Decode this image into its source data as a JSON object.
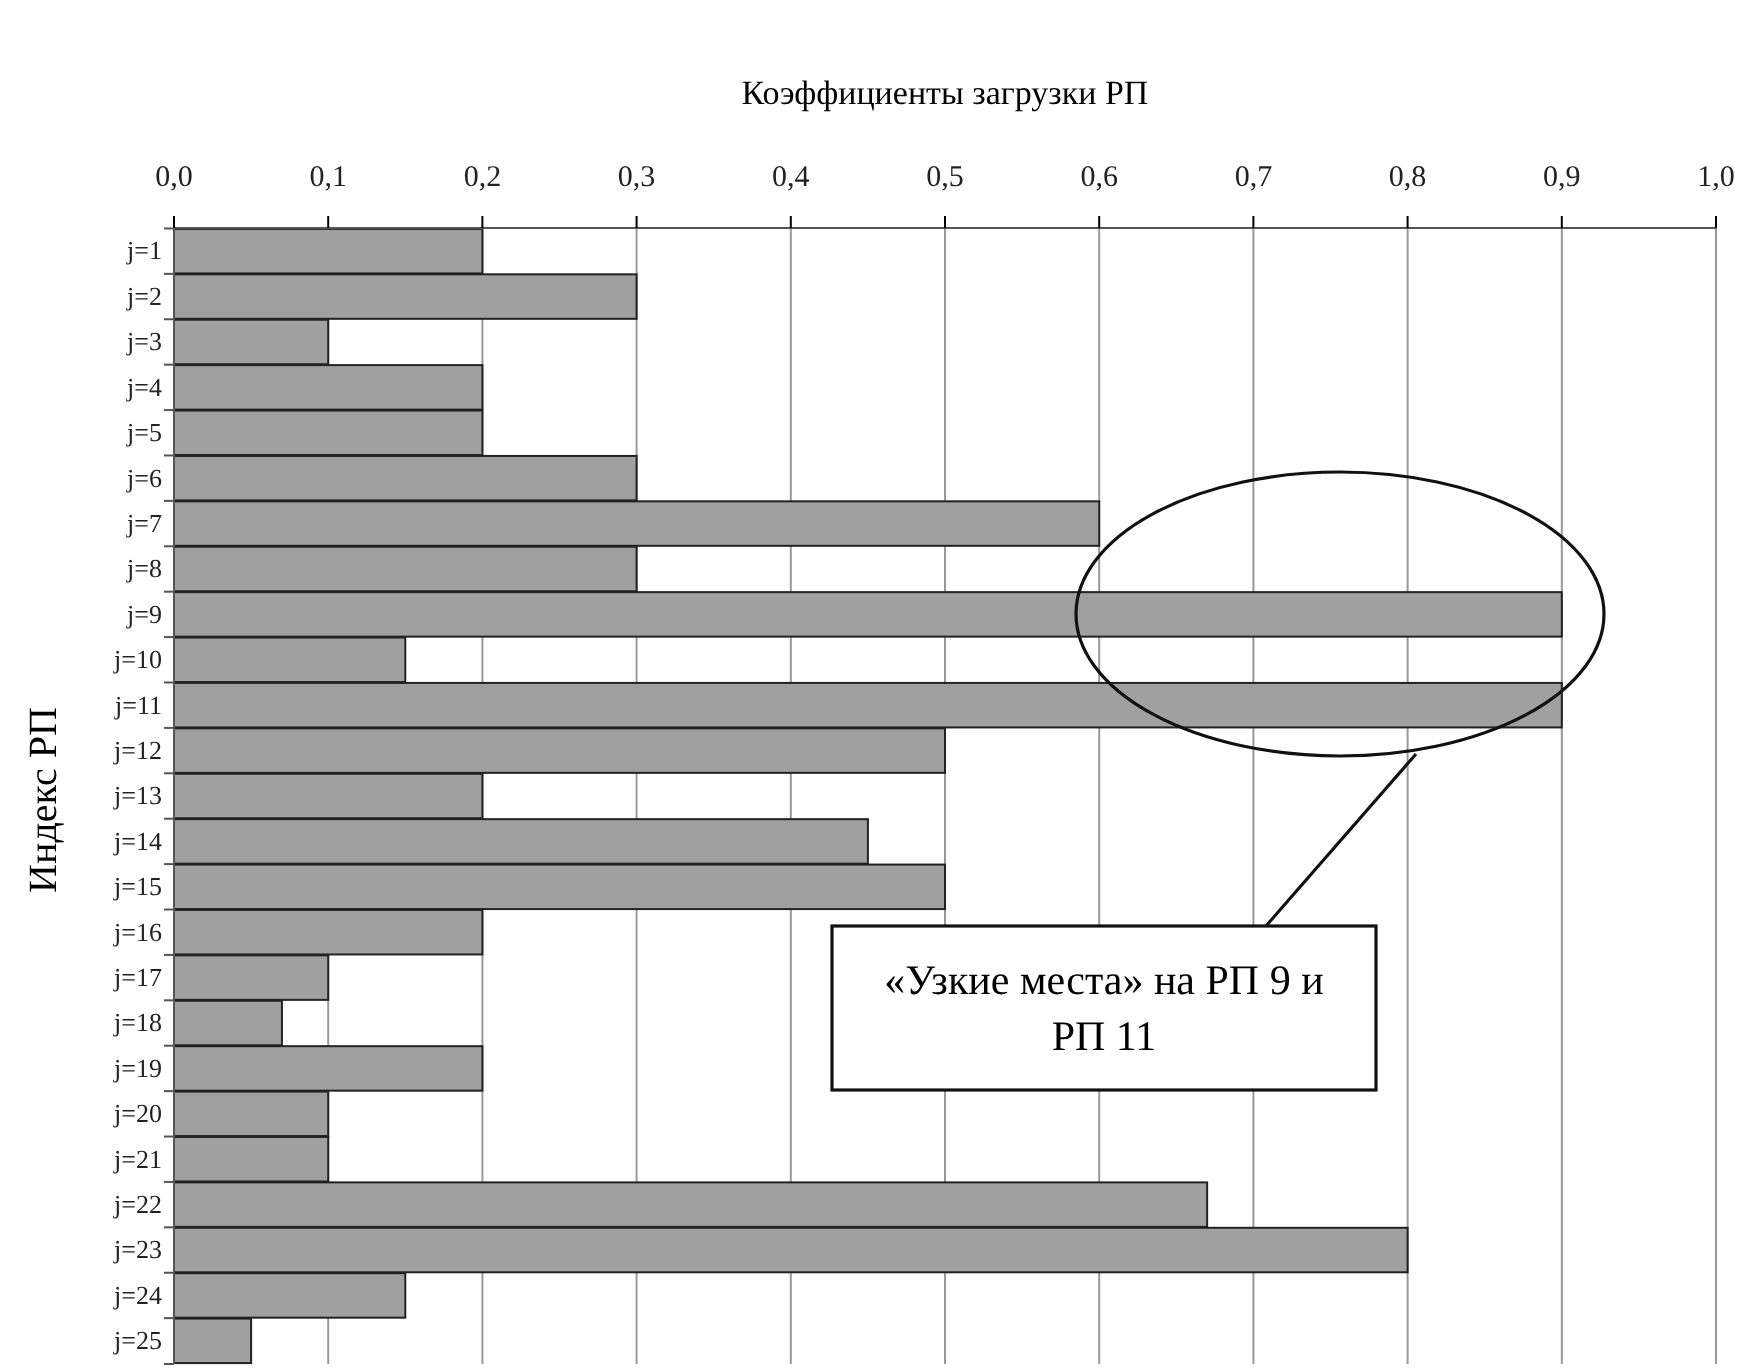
{
  "chart_data": {
    "type": "bar",
    "orientation": "horizontal",
    "title": "Коэффициенты загрузки РП",
    "ylabel": "Индекс РП",
    "categories": [
      "j=1",
      "j=2",
      "j=3",
      "j=4",
      "j=5",
      "j=6",
      "j=7",
      "j=8",
      "j=9",
      "j=10",
      "j=11",
      "j=12",
      "j=13",
      "j=14",
      "j=15",
      "j=16",
      "j=17",
      "j=18",
      "j=19",
      "j=20",
      "j=21",
      "j=22",
      "j=23",
      "j=24",
      "j=25"
    ],
    "values": [
      0.2,
      0.3,
      0.1,
      0.2,
      0.2,
      0.3,
      0.6,
      0.3,
      0.9,
      0.15,
      0.9,
      0.5,
      0.2,
      0.45,
      0.5,
      0.2,
      0.1,
      0.07,
      0.2,
      0.1,
      0.1,
      0.67,
      0.8,
      0.15,
      0.05
    ],
    "color": "#a0a0a0",
    "xlim": [
      0,
      1
    ],
    "xticks": [
      {
        "value": 0,
        "label": "0,0"
      },
      {
        "value": 0.1,
        "label": "0,1"
      },
      {
        "value": 0.2,
        "label": "0,2"
      },
      {
        "value": 0.3,
        "label": "0,3"
      },
      {
        "value": 0.4,
        "label": "0,4"
      },
      {
        "value": 0.5,
        "label": "0,5"
      },
      {
        "value": 0.6,
        "label": "0,6"
      },
      {
        "value": 0.7,
        "label": "0,7"
      },
      {
        "value": 0.8,
        "label": "0,8"
      },
      {
        "value": 0.9,
        "label": "0,9"
      },
      {
        "value": 1,
        "label": "1,0"
      }
    ],
    "grid": "x",
    "annotations": [
      "«Узкие места» на РП 9 и РП 11"
    ]
  }
}
